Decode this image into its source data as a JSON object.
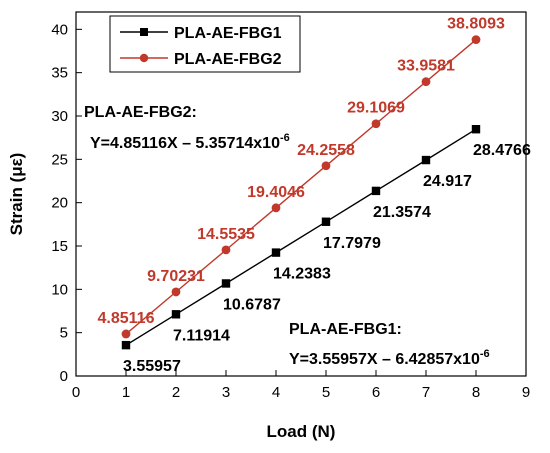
{
  "chart_data": {
    "type": "line",
    "xlabel": "Load (N)",
    "ylabel": "Strain (με)",
    "xlim": [
      0,
      9
    ],
    "ylim": [
      0,
      42
    ],
    "x_ticks": [
      "0",
      "1",
      "2",
      "3",
      "4",
      "5",
      "6",
      "7",
      "8",
      "9"
    ],
    "y_ticks": [
      "0",
      "5",
      "10",
      "15",
      "20",
      "25",
      "30",
      "35",
      "40"
    ],
    "x": [
      1,
      2,
      3,
      4,
      5,
      6,
      7,
      8
    ],
    "series": [
      {
        "name": "PLA-AE-FBG1",
        "color": "#000000",
        "marker": "square",
        "values": [
          3.55957,
          7.11914,
          10.6787,
          14.2383,
          17.7979,
          21.3574,
          24.917,
          28.4766
        ],
        "labels": [
          "3.55957",
          "7.11914",
          "10.6787",
          "14.2383",
          "17.7979",
          "21.3574",
          "24.917",
          "28.4766"
        ]
      },
      {
        "name": "PLA-AE-FBG2",
        "color": "#c0392b",
        "marker": "circle",
        "values": [
          4.85116,
          9.70231,
          14.5535,
          19.4046,
          24.2558,
          29.1069,
          33.9581,
          38.8093
        ],
        "labels": [
          "4.85116",
          "9.70231",
          "14.5535",
          "19.4046",
          "24.2558",
          "29.1069",
          "33.9581",
          "38.8093"
        ]
      }
    ],
    "legend_position": "top-left",
    "grid": false,
    "annotations": {
      "fbg2_name": "PLA-AE-FBG2:",
      "fbg2_eq_main": "Y=4.85116X – 5.35714x10",
      "fbg2_eq_exp": "-6",
      "fbg1_name": "PLA-AE-FBG1:",
      "fbg1_eq_main": "Y=3.55957X – 6.42857x10",
      "fbg1_eq_exp": "-6"
    }
  }
}
